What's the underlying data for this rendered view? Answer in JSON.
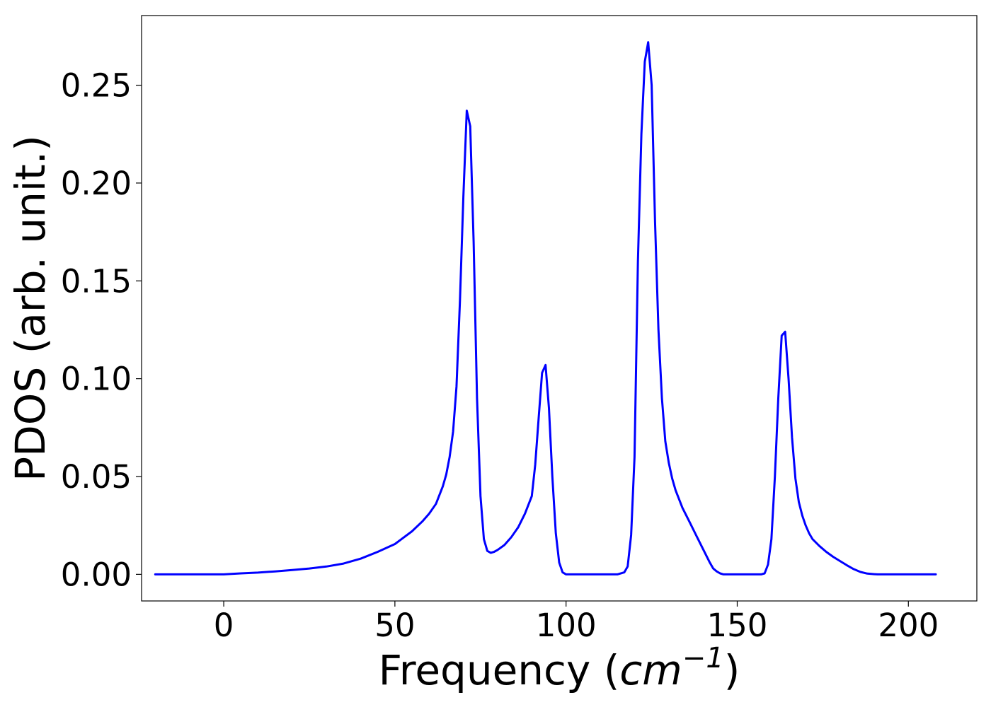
{
  "chart_data": {
    "type": "line",
    "title": "",
    "xlabel": {
      "prefix": "Frequency (",
      "unit_base": "cm",
      "unit_exponent": "−1",
      "suffix": ")"
    },
    "ylabel": "PDOS (arb. unit.)",
    "xlim": [
      -24,
      220
    ],
    "ylim": [
      -0.0136,
      0.2856
    ],
    "x_ticks": [
      0,
      50,
      100,
      150,
      200
    ],
    "x_tick_labels": [
      "0",
      "50",
      "100",
      "150",
      "200"
    ],
    "y_ticks": [
      0.0,
      0.05,
      0.1,
      0.15,
      0.2,
      0.25
    ],
    "y_tick_labels": [
      "0.00",
      "0.05",
      "0.10",
      "0.15",
      "0.20",
      "0.25"
    ],
    "grid": false,
    "legend": null,
    "series": [
      {
        "color": "#0000ff",
        "x": [
          -20,
          0,
          5,
          10,
          15,
          20,
          25,
          30,
          35,
          40,
          45,
          50,
          55,
          58,
          60,
          62,
          64,
          65,
          66,
          67,
          68,
          69,
          70,
          71,
          72,
          73,
          74,
          75,
          76,
          77,
          78,
          79,
          80,
          82,
          84,
          86,
          88,
          90,
          91,
          92,
          93,
          94,
          95,
          96,
          97,
          98,
          99,
          100,
          102,
          105,
          110,
          115,
          117,
          118,
          119,
          120,
          121,
          122,
          123,
          124,
          125,
          126,
          127,
          128,
          129,
          130,
          131,
          132,
          134,
          136,
          138,
          140,
          142,
          143,
          144,
          145,
          146,
          148,
          150,
          155,
          157,
          158,
          159,
          160,
          161,
          162,
          163,
          164,
          165,
          166,
          167,
          168,
          169,
          170,
          171,
          172,
          174,
          176,
          178,
          180,
          182,
          184,
          186,
          188,
          190,
          191,
          192,
          195,
          200,
          208
        ],
        "y": [
          0.0,
          0.0,
          0.0005,
          0.0009,
          0.0015,
          0.0022,
          0.003,
          0.004,
          0.0055,
          0.008,
          0.0115,
          0.0155,
          0.022,
          0.027,
          0.031,
          0.036,
          0.045,
          0.051,
          0.06,
          0.073,
          0.096,
          0.14,
          0.193,
          0.237,
          0.229,
          0.17,
          0.09,
          0.04,
          0.018,
          0.012,
          0.011,
          0.0115,
          0.0125,
          0.015,
          0.019,
          0.024,
          0.031,
          0.04,
          0.056,
          0.08,
          0.103,
          0.107,
          0.085,
          0.05,
          0.021,
          0.006,
          0.001,
          0.0,
          0.0,
          0.0,
          0.0,
          0.0,
          0.001,
          0.004,
          0.02,
          0.06,
          0.16,
          0.225,
          0.262,
          0.272,
          0.25,
          0.18,
          0.125,
          0.09,
          0.068,
          0.057,
          0.049,
          0.043,
          0.034,
          0.027,
          0.02,
          0.013,
          0.006,
          0.003,
          0.0015,
          0.0005,
          0.0,
          0.0,
          0.0,
          0.0,
          0.0,
          0.0005,
          0.005,
          0.018,
          0.05,
          0.09,
          0.122,
          0.124,
          0.1,
          0.07,
          0.049,
          0.037,
          0.03,
          0.025,
          0.021,
          0.018,
          0.0145,
          0.0115,
          0.009,
          0.0068,
          0.0047,
          0.0027,
          0.0012,
          0.0004,
          0.0001,
          0.0,
          0.0,
          0.0,
          0.0,
          0.0
        ]
      }
    ]
  }
}
